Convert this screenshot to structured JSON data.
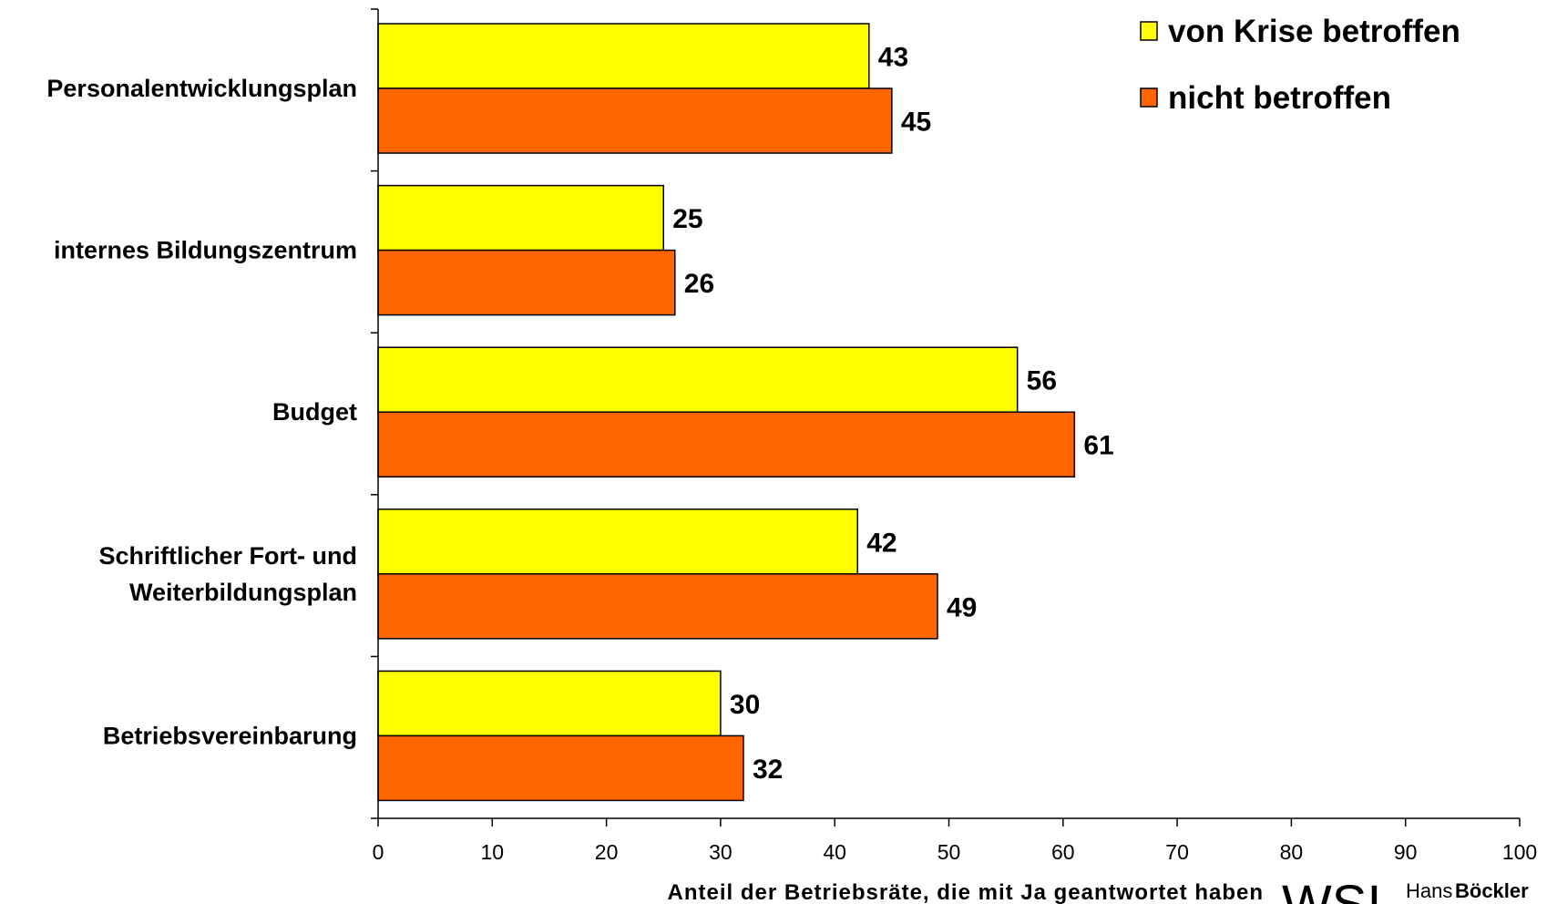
{
  "chart_data": {
    "type": "bar",
    "orientation": "horizontal",
    "categories": [
      "Personalentwicklungsplan",
      "internes Bildungszentrum",
      "Budget",
      "Schriftlicher Fort- und Weiterbildungsplan",
      "Betriebsvereinbarung"
    ],
    "category_lines": [
      [
        "Personalentwicklungsplan"
      ],
      [
        "internes Bildungszentrum"
      ],
      [
        "Budget"
      ],
      [
        "Schriftlicher Fort- und",
        "Weiterbildungsplan"
      ],
      [
        "Betriebsvereinbarung"
      ]
    ],
    "series": [
      {
        "name": "von Krise betroffen",
        "color": "#FFFF00",
        "values": [
          43,
          25,
          56,
          42,
          30
        ]
      },
      {
        "name": "nicht betroffen",
        "color": "#FF6600",
        "values": [
          45,
          26,
          61,
          49,
          32
        ]
      }
    ],
    "xlabel": "Anteil der Betriebsräte, die mit Ja geantwortet haben",
    "xlim": [
      0,
      100
    ],
    "xticks": [
      0,
      10,
      20,
      30,
      40,
      50,
      60,
      70,
      80,
      90,
      100
    ],
    "grid": false,
    "legend_position": "top-right"
  },
  "logo": {
    "wsi": "WSI",
    "hans": "Hans",
    "boeckler": "Böckler"
  }
}
